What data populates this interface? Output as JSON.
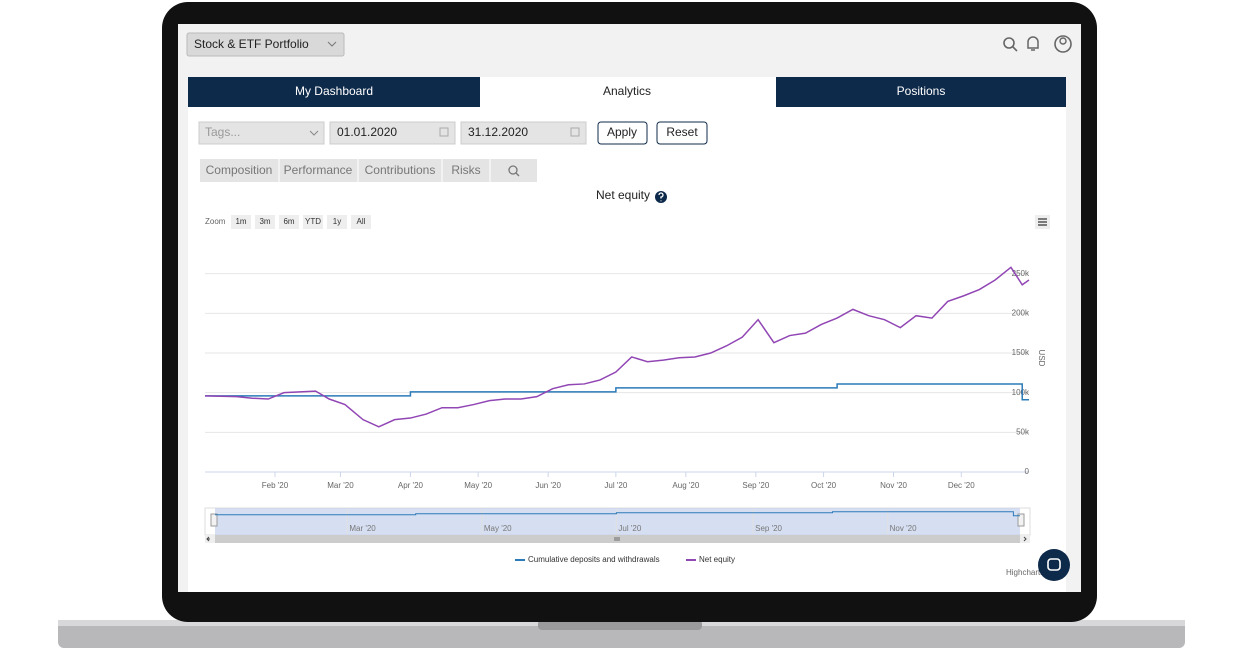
{
  "header": {
    "portfolio": "Stock & ETF Portfolio"
  },
  "tabs": [
    "My Dashboard",
    "Analytics",
    "Positions"
  ],
  "filters": {
    "tags": "Tags...",
    "start": "01.01.2020",
    "end": "31.12.2020",
    "apply": "Apply",
    "reset": "Reset"
  },
  "subtabs": [
    "Composition",
    "Performance",
    "Contributions",
    "Risks"
  ],
  "chart_data": {
    "type": "line",
    "title": "Net equity",
    "zoom_label": "Zoom",
    "zoom_buttons": [
      "1m",
      "3m",
      "6m",
      "YTD",
      "1y",
      "All"
    ],
    "y_label": "USD",
    "x": [
      0,
      14,
      21,
      28,
      35,
      42,
      49,
      55,
      62,
      70,
      77,
      84,
      91,
      98,
      105,
      112,
      119,
      126,
      133,
      140,
      147,
      154,
      161,
      168,
      175,
      182,
      189,
      196,
      203,
      210,
      217,
      224,
      231,
      238,
      245,
      252,
      259,
      266,
      273,
      280,
      287,
      294,
      301,
      308,
      315,
      322,
      329,
      336,
      343,
      350,
      357,
      362,
      365
    ],
    "xlim": [
      0,
      365
    ],
    "xticks": [
      {
        "value": 31,
        "label": "Feb '20"
      },
      {
        "value": 60,
        "label": "Mar '20"
      },
      {
        "value": 91,
        "label": "Apr '20"
      },
      {
        "value": 121,
        "label": "May '20"
      },
      {
        "value": 152,
        "label": "Jun '20"
      },
      {
        "value": 182,
        "label": "Jul '20"
      },
      {
        "value": 213,
        "label": "Aug '20"
      },
      {
        "value": 244,
        "label": "Sep '20"
      },
      {
        "value": 274,
        "label": "Oct '20"
      },
      {
        "value": 305,
        "label": "Nov '20"
      },
      {
        "value": 335,
        "label": "Dec '20"
      }
    ],
    "navigator_ticks": [
      {
        "value": 60,
        "label": "Mar '20"
      },
      {
        "value": 121,
        "label": "May '20"
      },
      {
        "value": 182,
        "label": "Jul '20"
      },
      {
        "value": 244,
        "label": "Sep '20"
      },
      {
        "value": 305,
        "label": "Nov '20"
      }
    ],
    "ylim": [
      0,
      300000
    ],
    "yticks": [
      0,
      {
        "value": 50000,
        "label": "50k"
      },
      {
        "value": 100000,
        "label": "100k"
      },
      {
        "value": 150000,
        "label": "150k"
      },
      {
        "value": 200000,
        "label": "200k"
      },
      {
        "value": 250000,
        "label": "250k"
      }
    ],
    "grid": true,
    "series": [
      {
        "name": "Cumulative deposits and withdrawals",
        "color": "#2b7bb9",
        "step": true,
        "values": [
          96000,
          96000,
          96000,
          96000,
          96000,
          96000,
          96000,
          96000,
          96000,
          96000,
          96000,
          96000,
          101000,
          101000,
          101000,
          101000,
          101000,
          101000,
          101000,
          101000,
          101000,
          101000,
          101000,
          101000,
          101000,
          106000,
          106000,
          106000,
          106000,
          106000,
          106000,
          106000,
          106000,
          106000,
          106000,
          106000,
          106000,
          106000,
          106000,
          111000,
          111000,
          111000,
          111000,
          111000,
          111000,
          111000,
          111000,
          111000,
          111000,
          111000,
          111000,
          91000,
          91000
        ]
      },
      {
        "name": "Net equity",
        "color": "#9146b4",
        "step": false,
        "values": [
          96000,
          95000,
          93000,
          92000,
          100000,
          101000,
          102000,
          92000,
          85000,
          66000,
          57000,
          66000,
          68000,
          73000,
          81000,
          81000,
          85000,
          90000,
          92000,
          92000,
          95000,
          105000,
          110000,
          111000,
          116000,
          126000,
          145000,
          139000,
          141000,
          144000,
          145000,
          150000,
          159000,
          170000,
          192000,
          163000,
          172000,
          175000,
          186000,
          194000,
          205000,
          197000,
          192000,
          182000,
          197000,
          194000,
          215000,
          222000,
          230000,
          242000,
          258000,
          236000,
          242000
        ]
      }
    ],
    "credits": "Highcharts.com"
  }
}
